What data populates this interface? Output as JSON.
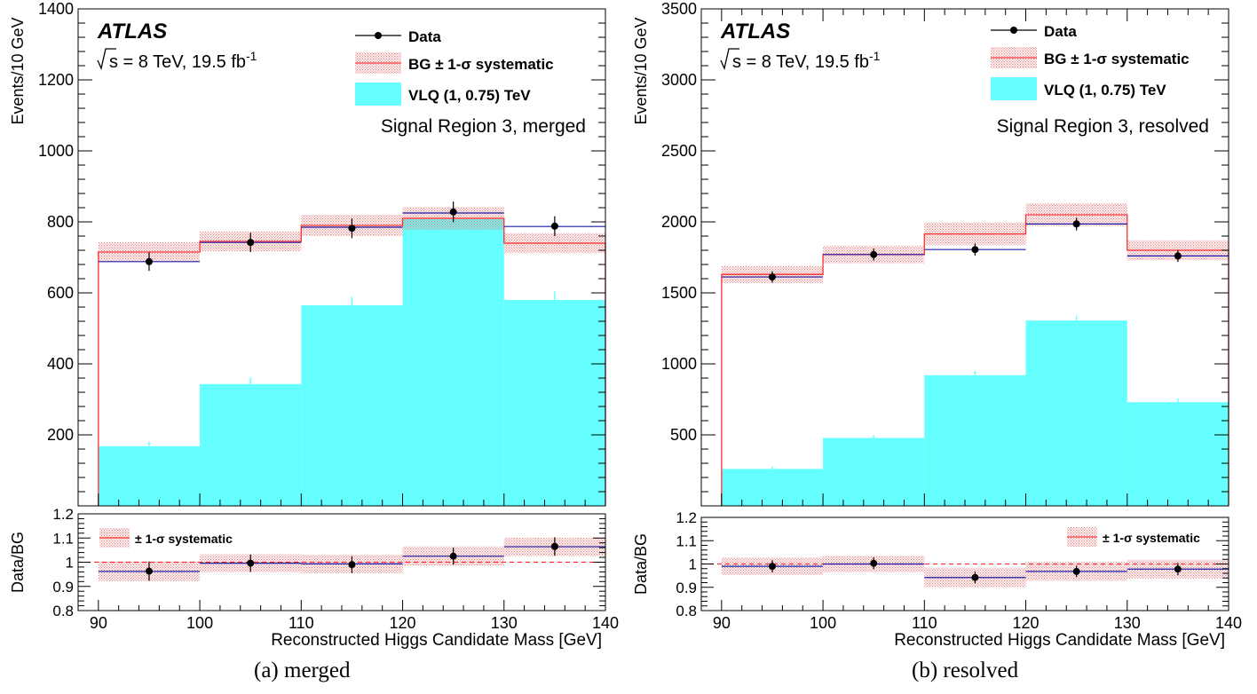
{
  "captions": [
    "(a)  merged",
    "(b)  resolved"
  ],
  "colors": {
    "data": "#000000",
    "bg_line": "#ff3030",
    "bg_band": "#e88080",
    "signal": "#66ffff",
    "nominal": "#1a1aa8",
    "ref_line": "#ff3030"
  },
  "chart_data": [
    {
      "type": "histogram",
      "panel": "merged",
      "xlabel": "Reconstructed Higgs Candidate Mass [GeV]",
      "ylabel": "Events/10 GeV",
      "ratio_ylabel": "Data/BG",
      "experiment_label": "ATLAS",
      "energy_label": {
        "root": "s",
        "rest": " = 8 TeV, 19.5 fb",
        "sup": "-1"
      },
      "region_label": "Signal Region 3, merged",
      "legend": [
        "Data",
        "BG ± 1-σ systematic",
        "VLQ (1, 0.75) TeV"
      ],
      "ratio_legend": "± 1-σ systematic",
      "bin_edges": [
        90,
        100,
        110,
        120,
        130,
        140
      ],
      "xticks": [
        90,
        100,
        110,
        120,
        130,
        140
      ],
      "xlim": [
        88,
        140
      ],
      "ylim": [
        0,
        1400
      ],
      "yticks": [
        200,
        400,
        600,
        800,
        1000,
        1200,
        1400
      ],
      "ratio_ylim": [
        0.8,
        1.2
      ],
      "ratio_yticks": [
        "0.8",
        "0.9",
        "1",
        "1.1",
        "1.2"
      ],
      "series": [
        {
          "name": "Data",
          "x": [
            95,
            105,
            115,
            125,
            135
          ],
          "values": [
            688,
            742,
            782,
            828,
            788
          ],
          "errors": [
            26,
            27,
            28,
            29,
            28
          ]
        },
        {
          "name": "BG ± 1-σ systematic",
          "values": [
            715,
            745,
            790,
            810,
            740
          ],
          "syst": [
            28,
            28,
            30,
            32,
            28
          ]
        },
        {
          "name": "VLQ (1, 0.75) TeV",
          "values": [
            168,
            343,
            565,
            808,
            580
          ],
          "errors": [
            13,
            19,
            24,
            29,
            24
          ]
        },
        {
          "name": "nominal",
          "values": [
            688,
            742,
            785,
            825,
            787
          ]
        },
        {
          "name": "ratio",
          "x": [
            95,
            105,
            115,
            125,
            135
          ],
          "values": [
            0.963,
            0.996,
            0.99,
            1.025,
            1.065
          ],
          "errors": [
            0.04,
            0.036,
            0.035,
            0.035,
            0.038
          ],
          "syst": [
            0.04,
            0.037,
            0.038,
            0.04,
            0.038
          ],
          "nominal": [
            0.962,
            0.996,
            0.993,
            1.025,
            1.064
          ]
        }
      ]
    },
    {
      "type": "histogram",
      "panel": "resolved",
      "xlabel": "Reconstructed Higgs Candidate Mass [GeV]",
      "ylabel": "Events/10 GeV",
      "ratio_ylabel": "Data/BG",
      "experiment_label": "ATLAS",
      "energy_label": {
        "root": "s",
        "rest": " = 8 TeV, 19.5 fb",
        "sup": "-1"
      },
      "region_label": "Signal Region 3, resolved",
      "legend": [
        "Data",
        "BG ± 1-σ systematic",
        "VLQ (1, 0.75) TeV"
      ],
      "ratio_legend": "± 1-σ systematic",
      "bin_edges": [
        90,
        100,
        110,
        120,
        130,
        140
      ],
      "xticks": [
        90,
        100,
        110,
        120,
        130,
        140
      ],
      "xlim": [
        88,
        140
      ],
      "ylim": [
        0,
        3500
      ],
      "yticks": [
        500,
        1000,
        1500,
        2000,
        2500,
        3000,
        3500
      ],
      "ratio_ylim": [
        0.8,
        1.2
      ],
      "ratio_yticks": [
        "0.8",
        "0.9",
        "1",
        "1.1",
        "1.2"
      ],
      "series": [
        {
          "name": "Data",
          "x": [
            95,
            105,
            115,
            125,
            135
          ],
          "values": [
            1612,
            1770,
            1805,
            1985,
            1760
          ],
          "errors": [
            40,
            42,
            42,
            45,
            42
          ]
        },
        {
          "name": "BG ± 1-σ systematic",
          "values": [
            1630,
            1770,
            1915,
            2050,
            1800
          ],
          "syst": [
            60,
            62,
            80,
            80,
            70
          ]
        },
        {
          "name": "VLQ (1, 0.75) TeV",
          "values": [
            260,
            478,
            920,
            1305,
            730
          ],
          "errors": [
            16,
            22,
            30,
            36,
            27
          ]
        },
        {
          "name": "nominal",
          "values": [
            1612,
            1770,
            1805,
            1985,
            1760
          ]
        },
        {
          "name": "ratio",
          "x": [
            95,
            105,
            115,
            125,
            135
          ],
          "values": [
            0.99,
            1.003,
            0.942,
            0.968,
            0.978
          ],
          "errors": [
            0.026,
            0.025,
            0.025,
            0.024,
            0.026
          ],
          "syst": [
            0.037,
            0.035,
            0.042,
            0.04,
            0.04
          ],
          "nominal": [
            0.99,
            1.0,
            0.942,
            0.968,
            0.978
          ]
        }
      ]
    }
  ]
}
